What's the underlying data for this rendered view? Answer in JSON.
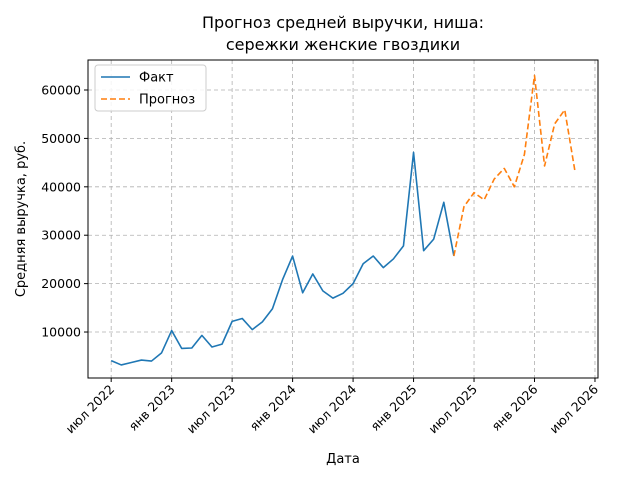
{
  "chart_data": {
    "type": "line",
    "title_line1": "Прогноз средней выручки, ниша:",
    "title_line2": "сережки женские гвоздики",
    "xlabel": "Дата",
    "ylabel": "Средняя выручка, руб.",
    "x_tick_labels": [
      "июл 2022",
      "янв 2023",
      "июл 2023",
      "янв 2024",
      "июл 2024",
      "янв 2025",
      "июл 2025",
      "янв 2026",
      "июл 2026"
    ],
    "y_tick_labels": [
      "10000",
      "20000",
      "30000",
      "40000",
      "50000",
      "60000"
    ],
    "ylim": [
      500,
      66200
    ],
    "grid": true,
    "legend_position": "top-left",
    "series": [
      {
        "name": "Факт",
        "color": "#1f77b4",
        "style": "solid",
        "points": [
          [
            "2022-07",
            4100
          ],
          [
            "2022-08",
            3200
          ],
          [
            "2022-09",
            3700
          ],
          [
            "2022-10",
            4200
          ],
          [
            "2022-11",
            4000
          ],
          [
            "2022-12",
            5700
          ],
          [
            "2023-01",
            10300
          ],
          [
            "2023-02",
            6600
          ],
          [
            "2023-03",
            6700
          ],
          [
            "2023-04",
            9300
          ],
          [
            "2023-05",
            6900
          ],
          [
            "2023-06",
            7500
          ],
          [
            "2023-07",
            12200
          ],
          [
            "2023-08",
            12800
          ],
          [
            "2023-09",
            10500
          ],
          [
            "2023-10",
            12100
          ],
          [
            "2023-11",
            14800
          ],
          [
            "2023-12",
            20800
          ],
          [
            "2024-01",
            25700
          ],
          [
            "2024-02",
            18100
          ],
          [
            "2024-03",
            22000
          ],
          [
            "2024-04",
            18500
          ],
          [
            "2024-05",
            17000
          ],
          [
            "2024-06",
            18000
          ],
          [
            "2024-07",
            20000
          ],
          [
            "2024-08",
            24100
          ],
          [
            "2024-09",
            25700
          ],
          [
            "2024-10",
            23300
          ],
          [
            "2024-11",
            25100
          ],
          [
            "2024-12",
            27800
          ],
          [
            "2025-01",
            47100
          ],
          [
            "2025-02",
            26800
          ],
          [
            "2025-03",
            29200
          ],
          [
            "2025-04",
            36800
          ],
          [
            "2025-05",
            25700
          ]
        ]
      },
      {
        "name": "Прогноз",
        "color": "#ff7f0e",
        "style": "dashed",
        "points": [
          [
            "2025-05",
            25700
          ],
          [
            "2025-06",
            35900
          ],
          [
            "2025-07",
            38800
          ],
          [
            "2025-08",
            37300
          ],
          [
            "2025-09",
            41600
          ],
          [
            "2025-10",
            43800
          ],
          [
            "2025-11",
            40000
          ],
          [
            "2025-12",
            46700
          ],
          [
            "2026-01",
            63000
          ],
          [
            "2026-02",
            44300
          ],
          [
            "2026-03",
            53000
          ],
          [
            "2026-04",
            55900
          ],
          [
            "2026-05",
            43400
          ]
        ]
      }
    ]
  }
}
